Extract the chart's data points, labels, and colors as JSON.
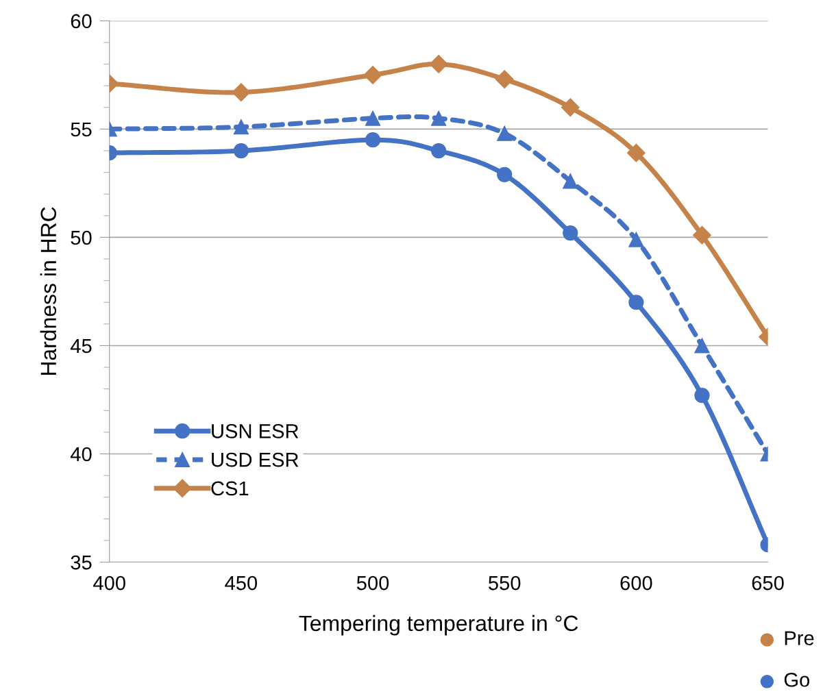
{
  "chart_data": {
    "type": "line",
    "xlabel": "Tempering temperature in °C",
    "ylabel": "Hardness in HRC",
    "x": [
      400,
      450,
      500,
      525,
      550,
      575,
      600,
      625,
      650
    ],
    "series": [
      {
        "name": "USN ESR",
        "color": "#4472c4",
        "marker": "circle",
        "line_style": "solid",
        "values": [
          53.9,
          54.0,
          54.5,
          54.0,
          52.9,
          50.2,
          47.0,
          42.7,
          35.8
        ]
      },
      {
        "name": "USD ESR",
        "color": "#4472c4",
        "marker": "triangle",
        "line_style": "dashed",
        "values": [
          55.0,
          55.1,
          55.5,
          55.5,
          54.8,
          52.6,
          49.9,
          45.0,
          40.0
        ]
      },
      {
        "name": "CS1",
        "color": "#c5834a",
        "marker": "diamond",
        "line_style": "solid",
        "values": [
          57.1,
          56.7,
          57.5,
          58.0,
          57.3,
          56.0,
          53.9,
          50.1,
          45.4
        ]
      }
    ],
    "xlim": [
      400,
      650
    ],
    "xticks": [
      400,
      450,
      500,
      550,
      600,
      650
    ],
    "ylim": [
      35,
      60
    ],
    "yticks": [
      35,
      40,
      45,
      50,
      55,
      60
    ],
    "grid": "y",
    "legend": "bottom left",
    "annotations": [
      "Pre",
      "Go"
    ]
  }
}
